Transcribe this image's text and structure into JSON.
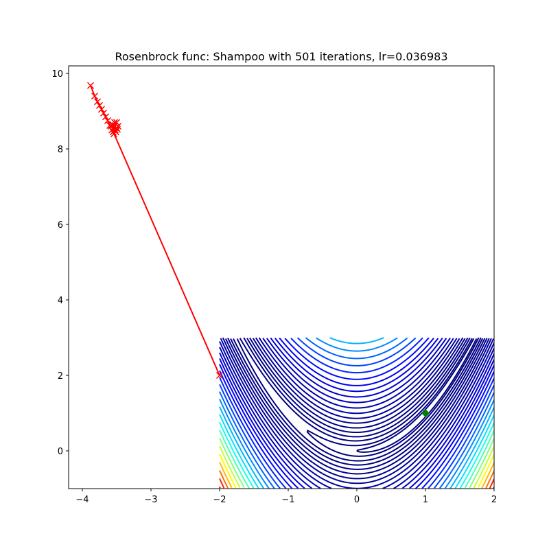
{
  "chart_data": {
    "type": "line",
    "title": "Rosenbrock func: Shampoo with 501 iterations, lr=0.036983",
    "xlabel": "",
    "ylabel": "",
    "xlim": [
      -4.2,
      2
    ],
    "ylim": [
      -1,
      10.2
    ],
    "xticks": [
      -4,
      -3,
      -2,
      -1,
      0,
      1,
      2
    ],
    "yticks": [
      0,
      2,
      4,
      6,
      8,
      10
    ],
    "grid": false,
    "contour_domain": {
      "x": [
        -2,
        2
      ],
      "y": [
        -1,
        3
      ]
    },
    "colormap": "jet",
    "contour_levels": [
      1,
      3,
      8,
      15,
      25,
      38,
      55,
      75,
      100,
      130,
      165,
      205,
      250,
      300,
      360,
      430,
      510,
      600,
      700,
      810,
      930,
      1060,
      1200,
      1350,
      1510,
      1680,
      1860,
      2050,
      2250,
      2460,
      2680
    ],
    "trajectory": {
      "color": "#ff0000",
      "marker": "x",
      "x": [
        -2.0,
        -3.55,
        -3.5,
        -3.58,
        -3.52,
        -3.56,
        -3.5,
        -3.54,
        -3.48,
        -3.53,
        -3.57,
        -3.51,
        -3.55,
        -3.49,
        -3.6,
        -3.63,
        -3.66,
        -3.69,
        -3.72,
        -3.75,
        -3.78,
        -3.82,
        -3.88
      ],
      "y": [
        2.0,
        8.45,
        8.7,
        8.6,
        8.5,
        8.65,
        8.55,
        8.4,
        8.6,
        8.7,
        8.5,
        8.45,
        8.62,
        8.52,
        8.62,
        8.75,
        8.85,
        8.95,
        9.05,
        9.15,
        9.25,
        9.4,
        9.68
      ]
    },
    "optimum": {
      "x": 1,
      "y": 1,
      "color": "#008000",
      "marker": "D"
    }
  }
}
